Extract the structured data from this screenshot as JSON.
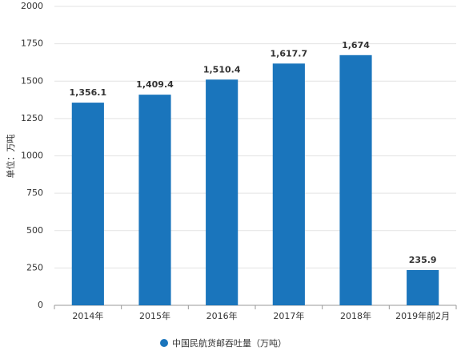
{
  "chart_data": {
    "type": "bar",
    "y_label": "单位：万吨",
    "categories": [
      "2014年",
      "2015年",
      "2016年",
      "2017年",
      "2018年",
      "2019年前2月"
    ],
    "series": [
      {
        "name": "中国民航货邮吞吐量（万吨）",
        "color": "#1a75bc",
        "values": [
          1356.1,
          1409.4,
          1510.4,
          1617.7,
          1674,
          235.9
        ],
        "value_labels": [
          "1,356.1",
          "1,409.4",
          "1,510.4",
          "1,617.7",
          "1,674",
          "235.9"
        ]
      }
    ],
    "ylim": [
      0,
      2000
    ],
    "yticks": [
      0,
      250,
      500,
      750,
      1000,
      1250,
      1500,
      1750,
      2000
    ],
    "grid": true,
    "legend": "bottom"
  }
}
